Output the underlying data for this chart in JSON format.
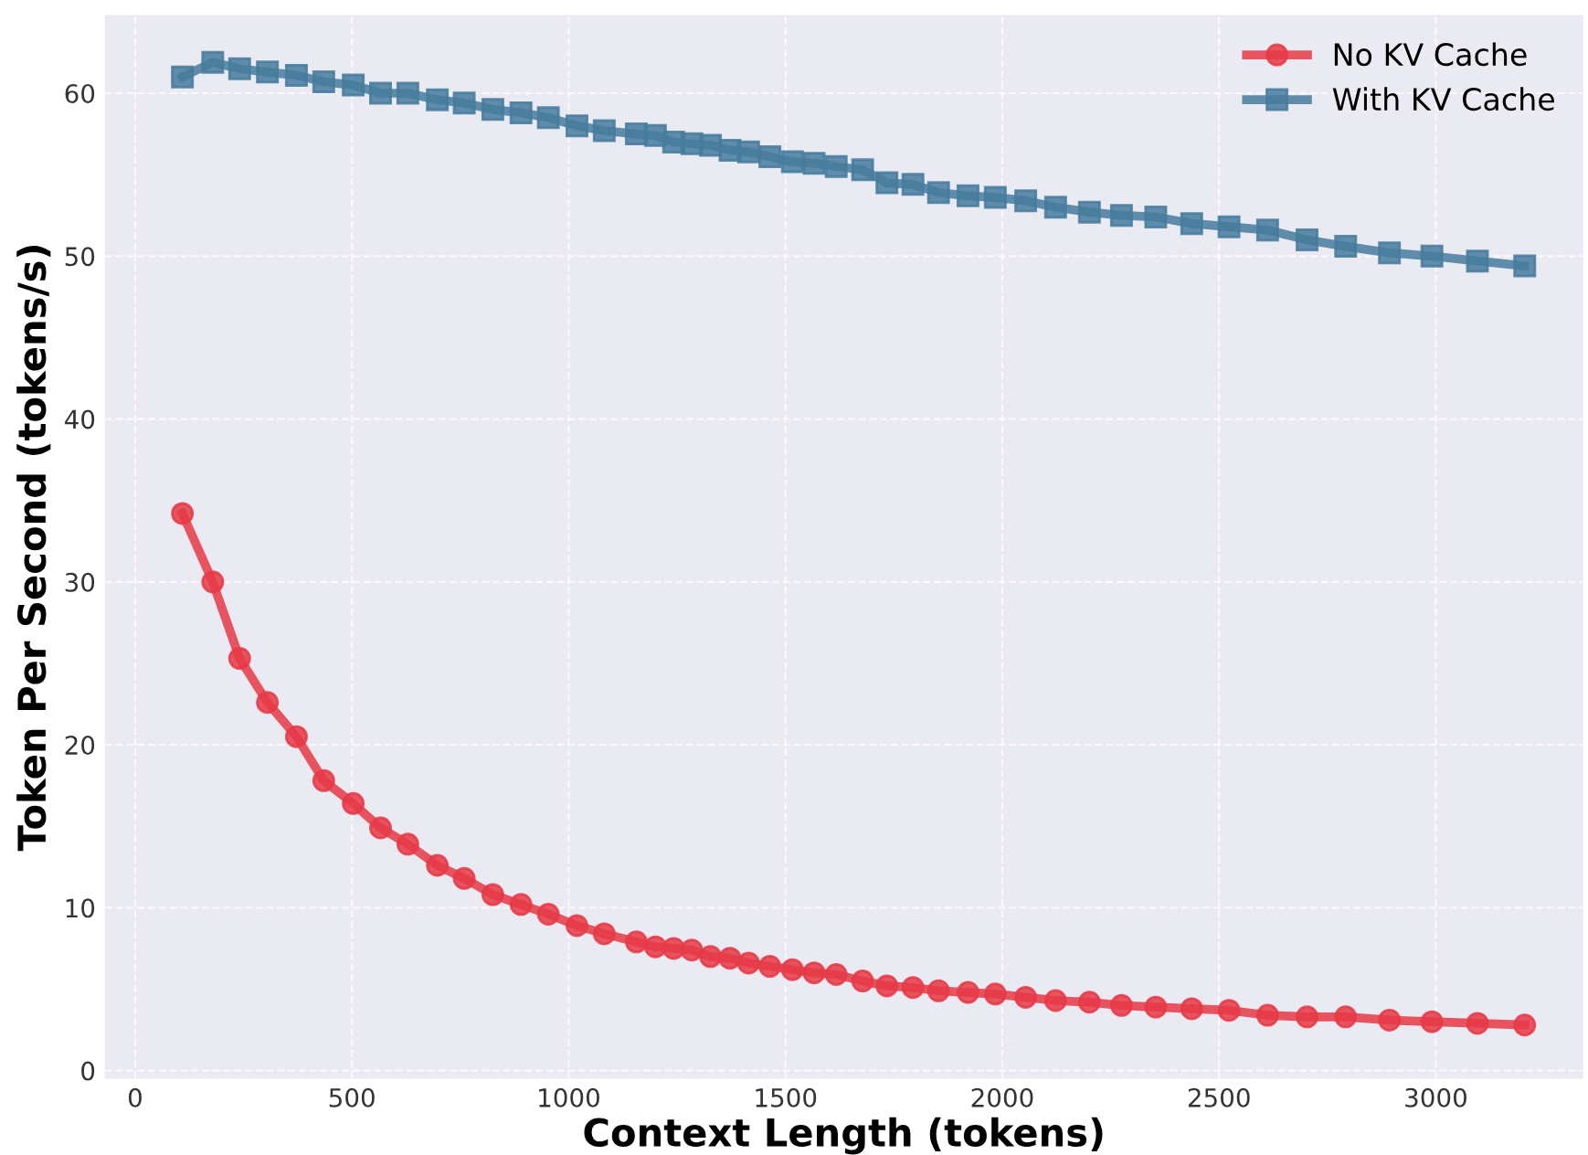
{
  "chart_data": {
    "type": "line",
    "xlabel": "Context Length (tokens)",
    "ylabel": "Token Per Second (tokens/s)",
    "x": [
      109,
      179,
      241,
      305,
      372,
      435,
      503,
      566,
      629,
      697,
      759,
      825,
      890,
      953,
      1019,
      1082,
      1156,
      1200,
      1242,
      1284,
      1327,
      1372,
      1415,
      1464,
      1516,
      1566,
      1617,
      1678,
      1734,
      1794,
      1853,
      1921,
      1984,
      2054,
      2123,
      2201,
      2275,
      2354,
      2437,
      2523,
      2612,
      2703,
      2792,
      2893,
      2991,
      3096,
      3205
    ],
    "series": [
      {
        "name": "No KV Cache",
        "color": "#e63946",
        "marker": "circle",
        "values": [
          34.2,
          30.0,
          25.3,
          22.6,
          20.5,
          17.8,
          16.4,
          14.9,
          13.9,
          12.6,
          11.8,
          10.8,
          10.2,
          9.6,
          8.9,
          8.4,
          7.9,
          7.6,
          7.5,
          7.4,
          7.0,
          6.9,
          6.6,
          6.4,
          6.2,
          6.0,
          5.9,
          5.5,
          5.2,
          5.1,
          4.9,
          4.8,
          4.7,
          4.5,
          4.3,
          4.2,
          4.0,
          3.9,
          3.8,
          3.7,
          3.4,
          3.3,
          3.3,
          3.1,
          3.0,
          2.9,
          2.8
        ]
      },
      {
        "name": "With KV Cache",
        "color": "#457b9d",
        "marker": "square",
        "values": [
          61.0,
          61.9,
          61.5,
          61.3,
          61.1,
          60.7,
          60.5,
          60.0,
          60.0,
          59.6,
          59.4,
          59.0,
          58.8,
          58.5,
          58.0,
          57.7,
          57.5,
          57.4,
          57.0,
          56.9,
          56.8,
          56.5,
          56.4,
          56.1,
          55.8,
          55.7,
          55.5,
          55.3,
          54.5,
          54.4,
          53.9,
          53.7,
          53.6,
          53.4,
          53.0,
          52.7,
          52.5,
          52.4,
          52.0,
          51.8,
          51.6,
          51.0,
          50.6,
          50.2,
          50.0,
          49.7,
          49.4
        ]
      }
    ],
    "xlim": [
      -70,
      3340
    ],
    "ylim": [
      -0.5,
      64.8
    ],
    "xticks": [
      0,
      500,
      1000,
      1500,
      2000,
      2500,
      3000
    ],
    "yticks": [
      0,
      10,
      20,
      30,
      40,
      50,
      60
    ],
    "grid": true,
    "legend": "top right",
    "line_style": "solid"
  }
}
